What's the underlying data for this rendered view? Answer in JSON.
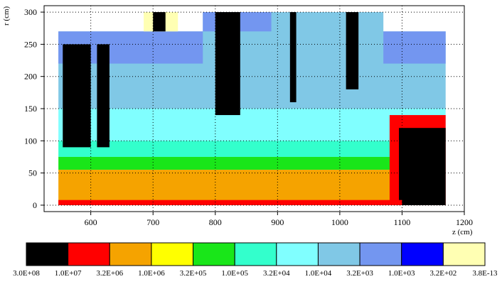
{
  "chart_data": {
    "type": "heatmap",
    "xlabel": "z (cm)",
    "ylabel": "r (cm)",
    "xlim": [
      525,
      1200
    ],
    "ylim": [
      -10,
      310
    ],
    "x_ticks": [
      "600",
      "700",
      "800",
      "900",
      "1000",
      "1100",
      "1200"
    ],
    "y_ticks": [
      "0",
      "50",
      "100",
      "150",
      "200",
      "250",
      "300"
    ],
    "grid": true,
    "scale_labels": [
      "3.0E+08",
      "1.0E+07",
      "3.2E+06",
      "1.0E+06",
      "3.2E+05",
      "1.0E+05",
      "3.2E+04",
      "1.0E+04",
      "3.2E+03",
      "1.0E+03",
      "3.2E+02",
      "3.8E-13"
    ],
    "scale_colors": [
      "#000000",
      "#ff0000",
      "#f5a300",
      "#ffff00",
      "#19e619",
      "#33ffcc",
      "#80ffff",
      "#80c8e6",
      "#7396f0",
      "#0000ff",
      "#ffffb3"
    ],
    "regions": [
      {
        "z0": 548,
        "z1": 1170,
        "r0": 150,
        "r1": 270,
        "level": 7
      },
      {
        "z0": 548,
        "z1": 1170,
        "r0": 220,
        "r1": 270,
        "level": 8
      },
      {
        "z0": 548,
        "z1": 1170,
        "r0": 100,
        "r1": 150,
        "level": 6
      },
      {
        "z0": 548,
        "z1": 1130,
        "r0": 75,
        "r1": 100,
        "level": 5
      },
      {
        "z0": 548,
        "z1": 1100,
        "r0": 55,
        "r1": 75,
        "level": 4
      },
      {
        "z0": 548,
        "z1": 1100,
        "r0": 0,
        "r1": 55,
        "level": 2
      },
      {
        "z0": 1080,
        "z1": 1170,
        "r0": 0,
        "r1": 140,
        "level": 1
      },
      {
        "z0": 1095,
        "z1": 1170,
        "r0": 0,
        "r1": 120,
        "level": 0
      },
      {
        "z0": 548,
        "z1": 1100,
        "r0": 0,
        "r1": 8,
        "level": 1
      },
      {
        "z0": 780,
        "z1": 1070,
        "r0": 150,
        "r1": 300,
        "level": 7
      },
      {
        "z0": 780,
        "z1": 890,
        "r0": 270,
        "r1": 300,
        "level": 8
      },
      {
        "z0": 685,
        "z1": 740,
        "r0": 270,
        "r1": 300,
        "level": 10
      },
      {
        "z0": 555,
        "z1": 600,
        "r0": 90,
        "r1": 250,
        "level": 0
      },
      {
        "z0": 610,
        "z1": 630,
        "r0": 90,
        "r1": 250,
        "level": 0
      },
      {
        "z0": 700,
        "z1": 720,
        "r0": 270,
        "r1": 300,
        "level": 0
      },
      {
        "z0": 800,
        "z1": 840,
        "r0": 140,
        "r1": 300,
        "level": 0
      },
      {
        "z0": 920,
        "z1": 930,
        "r0": 160,
        "r1": 300,
        "level": 0
      },
      {
        "z0": 1010,
        "z1": 1030,
        "r0": 180,
        "r1": 300,
        "level": 0
      }
    ]
  }
}
